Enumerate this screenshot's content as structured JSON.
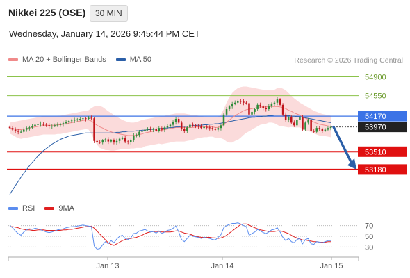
{
  "header": {
    "title": "Nikkei 225 (OSE)",
    "timeframe": "30 MIN",
    "datetime": "Wednesday, January 14, 2026 9:45:44 PM CET",
    "credit": "Research © 2026 Trading Central"
  },
  "legend": {
    "main": [
      {
        "label": "MA 20 + Bollinger Bands",
        "color": "#f08a8a"
      },
      {
        "label": "MA 50",
        "color": "#2b5fa8"
      }
    ],
    "rsi": [
      {
        "label": "RSI",
        "color": "#5b8def"
      },
      {
        "label": "9MA",
        "color": "#e02020"
      }
    ]
  },
  "colors": {
    "up": "#2e8b3a",
    "down": "#c0141b",
    "resistance": "#8bc34a",
    "pivot": "#3b73e6",
    "support": "#e01010",
    "band": "#f9cfcf",
    "arrow": "#2b5fa8"
  },
  "chart_data": [
    {
      "type": "candlestick",
      "yrange": [
        52650,
        55100
      ],
      "x_ticks": [
        "Jan 13",
        "Jan 14",
        "Jan 15"
      ],
      "levels": [
        {
          "value": 54900,
          "label": "54900",
          "kind": "resistance"
        },
        {
          "value": 54550,
          "label": "54550",
          "kind": "resistance"
        },
        {
          "value": 54170,
          "label": "54170",
          "kind": "pivot"
        },
        {
          "value": 53510,
          "label": "53510",
          "kind": "support"
        },
        {
          "value": 53180,
          "label": "53180",
          "kind": "support"
        }
      ],
      "last_price": {
        "value": 53970,
        "label": "53970"
      },
      "closes": [
        53950,
        53920,
        53900,
        53880,
        53880,
        53920,
        53950,
        53960,
        53980,
        54010,
        54020,
        54030,
        54010,
        54000,
        53980,
        53990,
        54000,
        54010,
        54020,
        54040,
        54060,
        54080,
        54090,
        54100,
        54110,
        54120,
        54130,
        54120,
        54140,
        54130,
        53710,
        53690,
        53680,
        53720,
        53740,
        53700,
        53720,
        53680,
        53710,
        53750,
        53760,
        53700,
        53690,
        53720,
        53810,
        53820,
        53880,
        53900,
        53920,
        53930,
        53920,
        53930,
        53900,
        53950,
        53920,
        53960,
        53980,
        54010,
        54060,
        54120,
        54050,
        53930,
        53900,
        53960,
        54010,
        54000,
        53990,
        53980,
        53950,
        53970,
        53960,
        53950,
        53930,
        53920,
        53950,
        54000,
        54200,
        54300,
        54350,
        54400,
        54420,
        54450,
        54440,
        54420,
        54410,
        54200,
        54250,
        54300,
        54380,
        54350,
        54320,
        54300,
        54350,
        54400,
        54420,
        54480,
        54380,
        54200,
        54100,
        54150,
        54050,
        54000,
        54100,
        54150,
        53920,
        54050,
        54100,
        53900,
        53880,
        53950,
        53930,
        53900,
        53920,
        53950,
        53970
      ],
      "ma20": [
        53950,
        53940,
        53930,
        53920,
        53920,
        53930,
        53940,
        53950,
        53960,
        53970,
        53980,
        53990,
        54000,
        54000,
        54000,
        54000,
        54000,
        54010,
        54010,
        54020,
        54030,
        54040,
        54050,
        54060,
        54070,
        54080,
        54090,
        54100,
        54100,
        54080,
        54040,
        54000,
        53970,
        53950,
        53920,
        53900,
        53880,
        53860,
        53850,
        53840,
        53830,
        53820,
        53810,
        53810,
        53810,
        53820,
        53830,
        53840,
        53860,
        53870,
        53880,
        53890,
        53900,
        53910,
        53910,
        53920,
        53930,
        53940,
        53950,
        53960,
        53960,
        53960,
        53960,
        53960,
        53960,
        53960,
        53970,
        53970,
        53970,
        53970,
        53970,
        53970,
        53970,
        53960,
        53960,
        53980,
        54020,
        54060,
        54100,
        54140,
        54180,
        54210,
        54240,
        54270,
        54290,
        54300,
        54310,
        54320,
        54330,
        54340,
        54340,
        54340,
        54350,
        54350,
        54350,
        54350,
        54340,
        54330,
        54310,
        54280,
        54260,
        54230,
        54210,
        54190,
        54160,
        54130,
        54110,
        54090,
        54060,
        54040,
        54020,
        54010,
        54000,
        53990,
        53980
      ],
      "ma50": [
        52720,
        52800,
        52880,
        52960,
        53040,
        53110,
        53180,
        53250,
        53310,
        53370,
        53430,
        53480,
        53530,
        53570,
        53610,
        53650,
        53680,
        53710,
        53740,
        53760,
        53780,
        53800,
        53810,
        53820,
        53830,
        53840,
        53850,
        53860,
        53860,
        53860,
        53860,
        53860,
        53860,
        53860,
        53860,
        53860,
        53860,
        53860,
        53870,
        53870,
        53880,
        53880,
        53890,
        53890,
        53890,
        53900,
        53900,
        53910,
        53910,
        53920,
        53920,
        53930,
        53930,
        53940,
        53940,
        53950,
        53950,
        53960,
        53960,
        53970,
        53970,
        53980,
        53980,
        53980,
        53990,
        53990,
        54000,
        54000,
        54000,
        54010,
        54010,
        54020,
        54020,
        54030,
        54030,
        54040,
        54050,
        54060,
        54070,
        54080,
        54090,
        54100,
        54110,
        54120,
        54130,
        54140,
        54150,
        54150,
        54160,
        54160,
        54170,
        54170,
        54180,
        54180,
        54190,
        54190,
        54190,
        54190,
        54180,
        54180,
        54170,
        54170,
        54160,
        54160,
        54150,
        54140,
        54130,
        54120,
        54110,
        54100,
        54090,
        54080,
        54070,
        54060,
        54050
      ],
      "bollinger_upper": [
        54050,
        54060,
        54070,
        54080,
        54090,
        54100,
        54110,
        54120,
        54130,
        54140,
        54150,
        54160,
        54170,
        54170,
        54170,
        54170,
        54170,
        54180,
        54180,
        54190,
        54200,
        54210,
        54220,
        54230,
        54240,
        54250,
        54260,
        54270,
        54280,
        54320,
        54350,
        54360,
        54360,
        54340,
        54300,
        54260,
        54230,
        54190,
        54160,
        54130,
        54100,
        54080,
        54060,
        54050,
        54050,
        54060,
        54080,
        54100,
        54110,
        54120,
        54130,
        54140,
        54150,
        54160,
        54170,
        54180,
        54190,
        54200,
        54210,
        54220,
        54220,
        54220,
        54220,
        54210,
        54200,
        54190,
        54190,
        54180,
        54170,
        54160,
        54160,
        54150,
        54150,
        54150,
        54160,
        54200,
        54300,
        54420,
        54520,
        54600,
        54650,
        54690,
        54710,
        54720,
        54720,
        54710,
        54700,
        54690,
        54680,
        54670,
        54660,
        54650,
        54650,
        54650,
        54660,
        54690,
        54700,
        54680,
        54650,
        54600,
        54550,
        54500,
        54460,
        54420,
        54390,
        54360,
        54330,
        54300,
        54270,
        54250,
        54230,
        54210,
        54200,
        54190,
        54180
      ],
      "bollinger_lower": [
        53850,
        53820,
        53790,
        53760,
        53750,
        53760,
        53770,
        53780,
        53790,
        53800,
        53810,
        53820,
        53830,
        53830,
        53830,
        53830,
        53830,
        53840,
        53840,
        53850,
        53860,
        53870,
        53880,
        53890,
        53900,
        53910,
        53920,
        53930,
        53920,
        53840,
        53730,
        53640,
        53580,
        53560,
        53540,
        53540,
        53530,
        53530,
        53540,
        53550,
        53560,
        53560,
        53560,
        53570,
        53570,
        53580,
        53580,
        53580,
        53610,
        53620,
        53630,
        53640,
        53650,
        53660,
        53650,
        53660,
        53670,
        53680,
        53690,
        53700,
        53700,
        53700,
        53700,
        53710,
        53720,
        53730,
        53750,
        53760,
        53770,
        53780,
        53780,
        53790,
        53790,
        53770,
        53760,
        53760,
        53740,
        53700,
        53680,
        53680,
        53710,
        53730,
        53770,
        53820,
        53860,
        53890,
        53920,
        53950,
        53980,
        54010,
        54020,
        54030,
        54050,
        54050,
        54040,
        54010,
        53980,
        53980,
        53970,
        53960,
        53970,
        53960,
        53960,
        53960,
        53930,
        53900,
        53890,
        53880,
        53850,
        53830,
        53810,
        53810,
        53800,
        53790,
        53780
      ],
      "projection": {
        "from": 53970,
        "to": 53180
      }
    },
    {
      "type": "line",
      "ylim": [
        15,
        85
      ],
      "y_ticks": [
        70,
        50,
        30
      ],
      "rsi": [
        70,
        66,
        60,
        55,
        52,
        58,
        62,
        64,
        63,
        65,
        64,
        62,
        60,
        58,
        57,
        58,
        60,
        62,
        63,
        64,
        66,
        67,
        68,
        68,
        69,
        70,
        71,
        70,
        69,
        68,
        32,
        26,
        27,
        34,
        40,
        36,
        42,
        38,
        45,
        50,
        52,
        46,
        44,
        47,
        55,
        56,
        60,
        61,
        63,
        60,
        58,
        59,
        56,
        60,
        55,
        58,
        61,
        62,
        65,
        69,
        58,
        44,
        40,
        46,
        52,
        50,
        49,
        48,
        46,
        48,
        47,
        46,
        44,
        43,
        48,
        53,
        66,
        70,
        72,
        74,
        74,
        75,
        73,
        70,
        68,
        52,
        55,
        58,
        63,
        60,
        57,
        55,
        58,
        62,
        63,
        66,
        58,
        48,
        42,
        46,
        40,
        38,
        44,
        46,
        36,
        44,
        46,
        36,
        35,
        40,
        39,
        38,
        40,
        42,
        42
      ],
      "rsi_ma": [
        68,
        68,
        67,
        66,
        64,
        63,
        62,
        62,
        61,
        61,
        62,
        62,
        62,
        61,
        61,
        61,
        61,
        61,
        61,
        62,
        62,
        63,
        63,
        64,
        65,
        66,
        67,
        68,
        68,
        69,
        65,
        60,
        54,
        49,
        43,
        38,
        35,
        33,
        36,
        39,
        42,
        44,
        45,
        46,
        47,
        48,
        50,
        52,
        55,
        57,
        58,
        59,
        59,
        59,
        58,
        58,
        58,
        58,
        59,
        60,
        60,
        58,
        56,
        55,
        54,
        52,
        50,
        49,
        48,
        48,
        48,
        48,
        47,
        47,
        46,
        47,
        49,
        52,
        56,
        60,
        64,
        68,
        72,
        73,
        73,
        71,
        68,
        66,
        64,
        62,
        61,
        60,
        59,
        59,
        59,
        60,
        60,
        59,
        57,
        55,
        52,
        49,
        47,
        45,
        43,
        43,
        42,
        41,
        40,
        40,
        39,
        39,
        39,
        40,
        40
      ]
    }
  ]
}
